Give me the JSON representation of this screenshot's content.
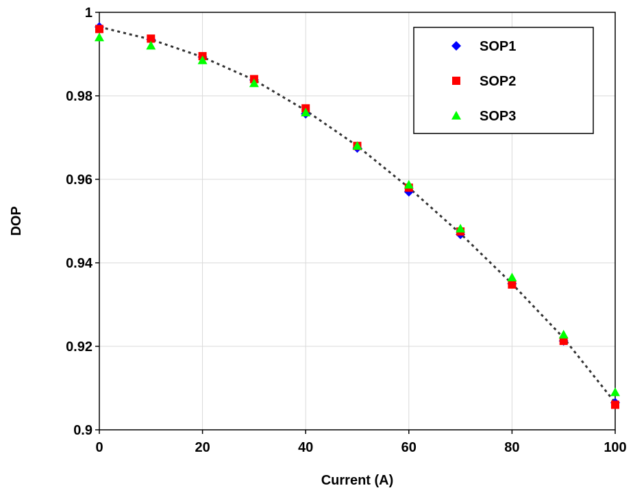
{
  "chart_data": {
    "type": "scatter",
    "title": "",
    "xlabel": "Current (A)",
    "ylabel": "DOP",
    "xlim": [
      0,
      100
    ],
    "ylim": [
      0.9,
      1.0
    ],
    "xticks": [
      0,
      20,
      40,
      60,
      80,
      100
    ],
    "yticks": [
      0.9,
      0.92,
      0.94,
      0.96,
      0.98,
      1.0
    ],
    "xtick_labels": [
      "0",
      "20",
      "40",
      "60",
      "80",
      "100"
    ],
    "ytick_labels": [
      "0.9",
      "0.92",
      "0.94",
      "0.96",
      "0.98",
      "1"
    ],
    "grid": true,
    "legend_position": "top-right",
    "x": [
      0,
      10,
      20,
      30,
      40,
      50,
      60,
      70,
      80,
      90,
      100
    ],
    "series": [
      {
        "name": "SOP1",
        "marker": "diamond",
        "color": "#0000ff",
        "values": [
          0.9965,
          0.9935,
          0.9893,
          0.9838,
          0.9757,
          0.9675,
          0.957,
          0.9468,
          0.935,
          0.9213,
          0.9065
        ]
      },
      {
        "name": "SOP2",
        "marker": "square",
        "color": "#ff0000",
        "values": [
          0.996,
          0.9937,
          0.9895,
          0.984,
          0.977,
          0.968,
          0.958,
          0.9475,
          0.9348,
          0.9213,
          0.906
        ]
      },
      {
        "name": "SOP3",
        "marker": "triangle",
        "color": "#00ff00",
        "values": [
          0.994,
          0.992,
          0.9885,
          0.983,
          0.976,
          0.968,
          0.9587,
          0.9482,
          0.9365,
          0.9228,
          0.909
        ]
      }
    ],
    "fit_line": {
      "style": "dotted",
      "color": "#333333",
      "x": [
        0,
        10,
        20,
        30,
        40,
        50,
        60,
        70,
        80,
        90,
        100
      ],
      "y": [
        0.9965,
        0.9935,
        0.9893,
        0.9838,
        0.9765,
        0.968,
        0.958,
        0.947,
        0.935,
        0.922,
        0.9065
      ]
    }
  }
}
